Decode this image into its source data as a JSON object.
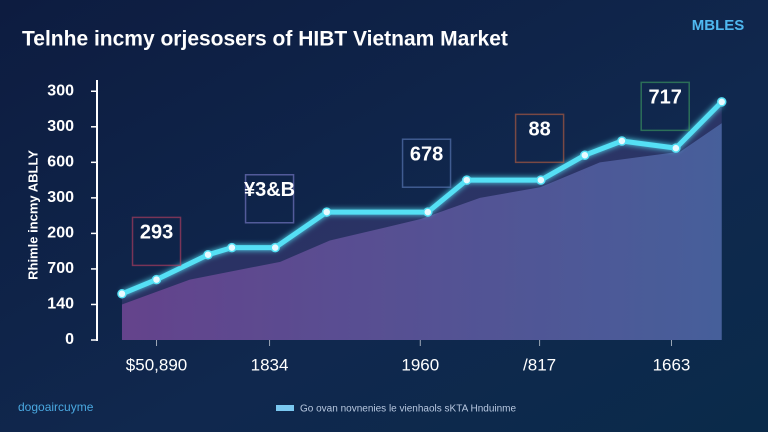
{
  "chart_data": {
    "type": "line",
    "title": "Telnhe incmy orjesosers of HIBT Vietnam Market",
    "logo": "MBLES",
    "y_axis_label": "Rhimle incmy ABLLY",
    "footer_left": "dogoaircuyme",
    "legend_text": "Go ovan novnenies le vienhaols sKTA Hnduinme",
    "xlim": [
      0,
      10
    ],
    "ylim": [
      0,
      7.3
    ],
    "xticks": [
      {
        "value": 0.9,
        "label": "$50,890"
      },
      {
        "value": 2.7,
        "label": "1834"
      },
      {
        "value": 5.1,
        "label": "1960"
      },
      {
        "value": 7.0,
        "label": "/817"
      },
      {
        "value": 9.1,
        "label": "1663"
      }
    ],
    "yticks": [
      {
        "value": 0,
        "label": "0"
      },
      {
        "value": 1,
        "label": "140"
      },
      {
        "value": 2,
        "label": "700"
      },
      {
        "value": 3,
        "label": "200"
      },
      {
        "value": 4,
        "label": "300"
      },
      {
        "value": 5,
        "label": "600"
      },
      {
        "value": 6,
        "label": "300"
      },
      {
        "value": 7,
        "label": "300"
      }
    ],
    "series": [
      {
        "style": "area",
        "color": "#5a5aa0",
        "x": [
          0.35,
          1.43,
          2.87,
          3.66,
          5.1,
          6.05,
          7.01,
          7.96,
          9.24,
          9.9
        ],
        "values": [
          1.0,
          1.7,
          2.2,
          2.8,
          3.4,
          4.0,
          4.3,
          5.0,
          5.3,
          6.1
        ]
      },
      {
        "style": "line",
        "color": "#55e0f5",
        "x": [
          0.35,
          0.9,
          1.72,
          2.1,
          2.79,
          3.61,
          5.22,
          5.84,
          7.02,
          7.72,
          8.31,
          9.17,
          9.9
        ],
        "values": [
          1.3,
          1.7,
          2.4,
          2.6,
          2.6,
          3.6,
          3.6,
          4.5,
          4.5,
          5.2,
          5.6,
          5.4,
          6.7
        ]
      }
    ],
    "annotations": [
      {
        "text": "293",
        "x": 0.9,
        "y": 3.0
      },
      {
        "text": "¥3&B",
        "x": 2.7,
        "y": 4.2
      },
      {
        "text": "678",
        "x": 5.2,
        "y": 5.2
      },
      {
        "text": "88",
        "x": 7.0,
        "y": 5.9
      },
      {
        "text": "717",
        "x": 9.0,
        "y": 6.8
      }
    ]
  }
}
